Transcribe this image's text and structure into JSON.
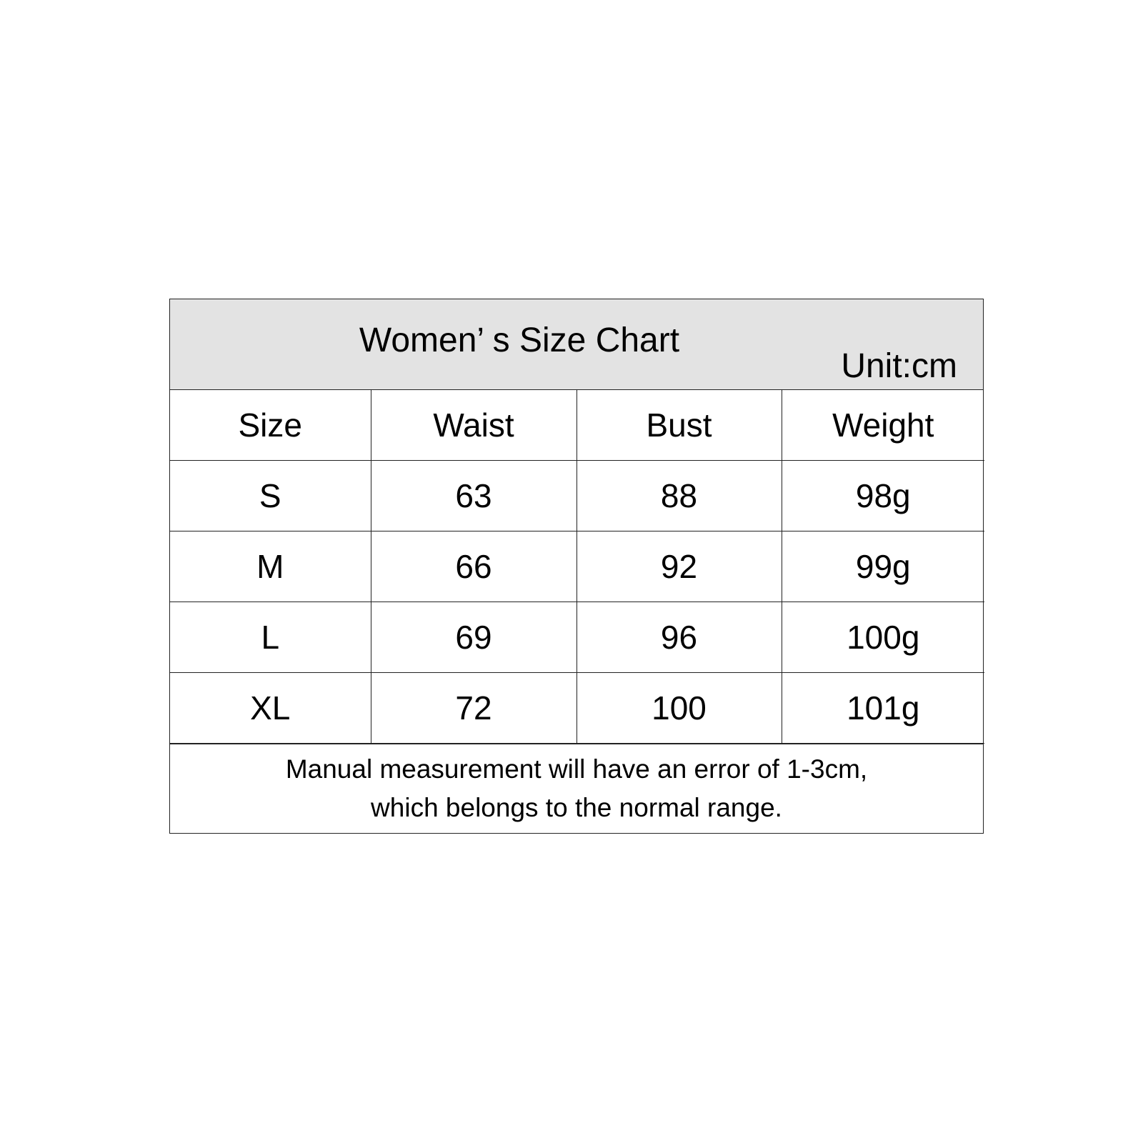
{
  "chart": {
    "title": "Women’ s Size Chart",
    "unit": "Unit:cm",
    "columns": [
      "Size",
      "Waist",
      "Bust",
      "Weight"
    ],
    "rows": [
      [
        "S",
        "63",
        "88",
        "98g"
      ],
      [
        "M",
        "66",
        "92",
        "99g"
      ],
      [
        "L",
        "69",
        "96",
        "100g"
      ],
      [
        "XL",
        "72",
        "100",
        "101g"
      ]
    ],
    "note": [
      "Manual measurement will have an error of 1-3cm,",
      "which belongs to the normal range."
    ],
    "header_bg": "#e3e3e3"
  }
}
